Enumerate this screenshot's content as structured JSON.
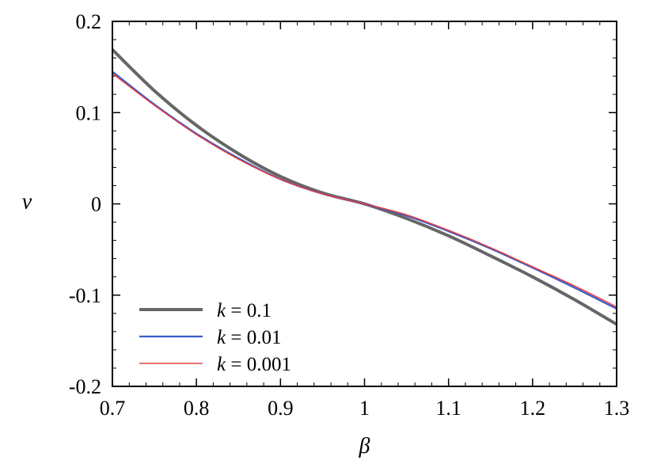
{
  "chart_data": {
    "type": "line",
    "title": "",
    "xlabel": "β",
    "ylabel": "ν",
    "xlim": [
      0.7,
      1.3
    ],
    "ylim": [
      -0.2,
      0.2
    ],
    "xticks": [
      0.7,
      0.8,
      0.9,
      1.0,
      1.1,
      1.2,
      1.3
    ],
    "xtick_labels": [
      "0.7",
      "0.8",
      "0.9",
      "1",
      "1.1",
      "1.2",
      "1.3"
    ],
    "yticks": [
      -0.2,
      -0.1,
      0.0,
      0.1,
      0.2
    ],
    "ytick_labels": [
      "-0.2",
      "-0.1",
      "0",
      "0.1",
      "0.2"
    ],
    "grid": false,
    "legend_position": "bottom-left",
    "series": [
      {
        "name": "k = 0.1",
        "legend_var": "k",
        "legend_value": "= 0.1",
        "color": "#666666",
        "x": [
          0.7,
          0.75,
          0.8,
          0.85,
          0.9,
          0.95,
          1.0,
          1.05,
          1.1,
          1.15,
          1.2,
          1.25,
          1.3
        ],
        "y": [
          0.169,
          0.124,
          0.086,
          0.055,
          0.03,
          0.012,
          0.0,
          -0.016,
          -0.035,
          -0.057,
          -0.08,
          -0.105,
          -0.132
        ]
      },
      {
        "name": "k = 0.01",
        "legend_var": "k",
        "legend_value": "= 0.01",
        "color": "#3b5bcc",
        "x": [
          0.7,
          0.75,
          0.8,
          0.85,
          0.9,
          0.95,
          1.0,
          1.05,
          1.1,
          1.15,
          1.2,
          1.25,
          1.3
        ],
        "y": [
          0.145,
          0.109,
          0.077,
          0.05,
          0.027,
          0.011,
          0.0,
          -0.013,
          -0.03,
          -0.049,
          -0.07,
          -0.092,
          -0.115
        ]
      },
      {
        "name": "k = 0.001",
        "legend_var": "k",
        "legend_value": "= 0.001",
        "color": "#e04040",
        "x": [
          0.7,
          0.75,
          0.8,
          0.85,
          0.9,
          0.95,
          1.0,
          1.05,
          1.1,
          1.15,
          1.2,
          1.25,
          1.3
        ],
        "y": [
          0.143,
          0.108,
          0.076,
          0.049,
          0.027,
          0.011,
          0.0,
          -0.012,
          -0.029,
          -0.048,
          -0.069,
          -0.09,
          -0.113
        ]
      }
    ]
  }
}
